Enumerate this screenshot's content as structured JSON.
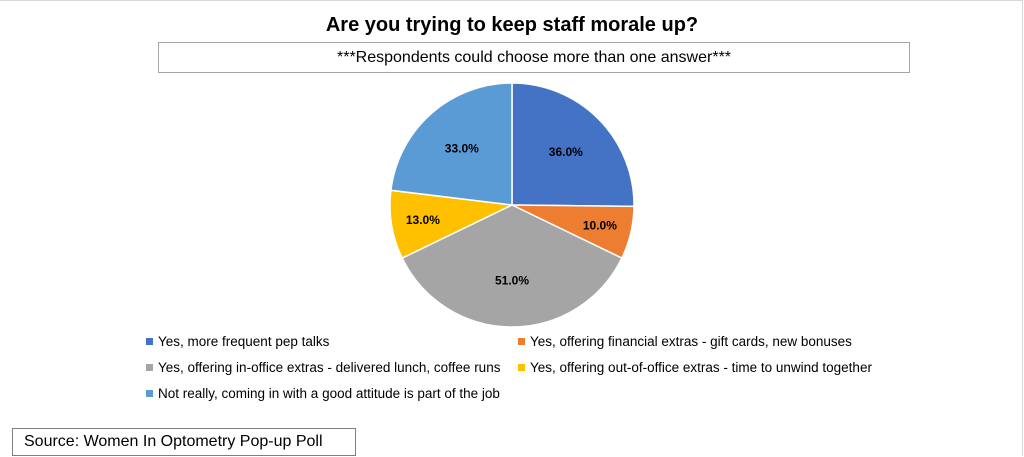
{
  "chart_data": {
    "type": "pie",
    "title": "Are you trying to keep staff morale up?",
    "subtitle": "***Respondents could choose more than one answer***",
    "slices": [
      {
        "label": "Yes, more frequent pep talks",
        "value": 36.0,
        "value_label": "36.0%",
        "color": "#4472c4"
      },
      {
        "label": "Yes, offering financial extras - gift cards, new bonuses",
        "value": 10.0,
        "value_label": "10.0%",
        "color": "#ed7d31"
      },
      {
        "label": "Yes, offering in-office extras - delivered lunch, coffee runs",
        "value": 51.0,
        "value_label": "51.0%",
        "color": "#a5a5a5"
      },
      {
        "label": "Yes, offering out-of-office extras - time to unwind together",
        "value": 13.0,
        "value_label": "13.0%",
        "color": "#ffc000"
      },
      {
        "label": "Not really, coming in with a good attitude is part of the job",
        "value": 33.0,
        "value_label": "33.0%",
        "color": "#5b9bd5"
      }
    ],
    "legend_position": "bottom"
  },
  "source_text": "Source: Women In Optometry Pop-up Poll"
}
